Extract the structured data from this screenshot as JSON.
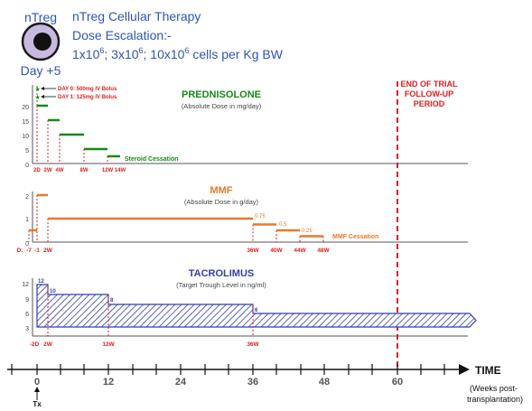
{
  "header": {
    "cell_label": "nTreg",
    "cell_day": "Day +5",
    "therapy_title": "nTreg Cellular Therapy",
    "dose_title": "Dose Escalation:-",
    "dose_line_parts": [
      "1x10",
      "6",
      "; 3x10",
      "6",
      "; 10x10",
      "6",
      " cells per Kg BW"
    ]
  },
  "colors": {
    "blue": "#2e55b8",
    "green": "#178a17",
    "orange": "#e8792b",
    "red": "#e02020",
    "tacro": "#2f3fae"
  },
  "end_of_trial": [
    "END OF TRIAL",
    "FOLLOW-UP",
    "PERIOD"
  ],
  "prednisolone": {
    "title": "PREDNISOLONE",
    "subtitle": "(Absolute Dose in mg/day)",
    "y_ticks": [
      "20",
      "15",
      "10",
      "5",
      "0"
    ],
    "annotations": [
      "DAY 0: 500mg IV Bolus",
      "DAY 1: 125mg IV Bolus"
    ],
    "x_labels": [
      "2D",
      "2W",
      "4W",
      "8W",
      "12W",
      "14W"
    ],
    "cessation_label": "Steroid Cessation",
    "steps": [
      {
        "from": "2D",
        "to": "2W",
        "dose": 20
      },
      {
        "from": "2W",
        "to": "4W",
        "dose": 15
      },
      {
        "from": "4W",
        "to": "8W",
        "dose": 10
      },
      {
        "from": "8W",
        "to": "12W",
        "dose": 5
      },
      {
        "from": "12W",
        "to": "14W",
        "dose": 2.5
      }
    ]
  },
  "mmf": {
    "title": "MMF",
    "subtitle": "(Absolute Dose in g/day)",
    "y_ticks": [
      "2",
      "1",
      "0"
    ],
    "x_prefix": "D:",
    "x_labels": [
      "-7",
      "-1",
      "2W",
      "36W",
      "40W",
      "44W",
      "48W"
    ],
    "step_labels": [
      "0.75",
      "0.5",
      "0.25"
    ],
    "cessation_label": "MMF Cessation",
    "steps": [
      {
        "from": "-7",
        "to": "-1",
        "dose": 0.5
      },
      {
        "from": "-1",
        "to": "2W",
        "dose": 2
      },
      {
        "from": "2W",
        "to": "36W",
        "dose": 1
      },
      {
        "from": "36W",
        "to": "40W",
        "dose": 0.75
      },
      {
        "from": "40W",
        "to": "44W",
        "dose": 0.5
      },
      {
        "from": "44W",
        "to": "48W",
        "dose": 0.25
      }
    ]
  },
  "tacrolimus": {
    "title": "TACROLIMUS",
    "subtitle": "(Target Trough Level in ng/ml)",
    "y_ticks": [
      "12",
      "9",
      "6",
      "3"
    ],
    "x_labels": [
      "-2D",
      "2W",
      "12W",
      "36W"
    ],
    "level_labels": [
      "12",
      "10",
      "8",
      "6"
    ],
    "steps": [
      {
        "from": "-2D",
        "to": "2W",
        "level": 12
      },
      {
        "from": "2W",
        "to": "12W",
        "level": 10
      },
      {
        "from": "12W",
        "to": "36W",
        "level": 8
      },
      {
        "from": "36W",
        "to": null,
        "level": 6
      }
    ]
  },
  "time_axis": {
    "ticks": [
      "0",
      "12",
      "24",
      "36",
      "48",
      "60"
    ],
    "label": "TIME",
    "units": [
      "(Weeks post-",
      "transplantation)"
    ],
    "tx_label": "Tx"
  }
}
